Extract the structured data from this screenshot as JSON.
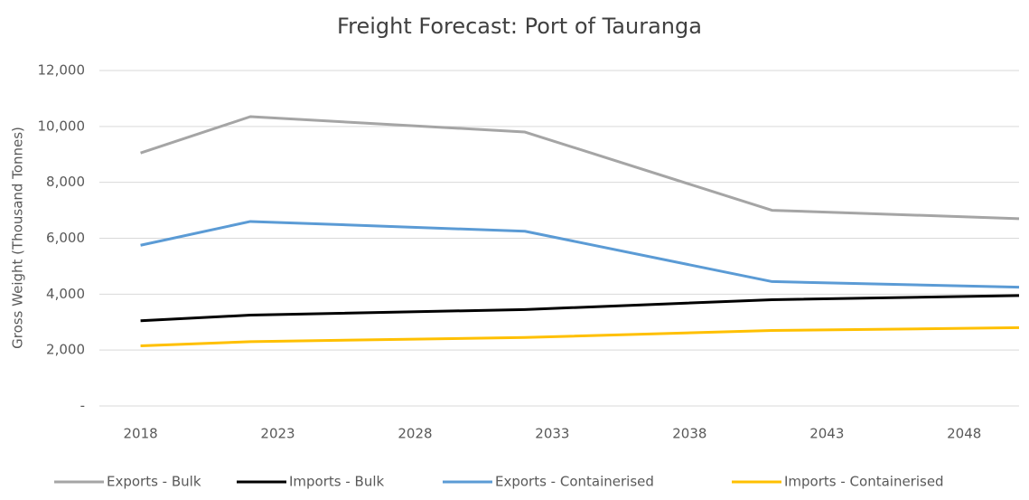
{
  "chart_data": {
    "type": "line",
    "title": "Freight Forecast: Port of Tauranga",
    "y_label": "Gross Weight (Thousand Tonnes)",
    "x": [
      2018,
      2022,
      2032,
      2041,
      2050
    ],
    "xlim": [
      2016.5,
      2050
    ],
    "xticks": [
      2018,
      2023,
      2028,
      2033,
      2038,
      2043,
      2048
    ],
    "ylim": [
      0,
      12000
    ],
    "yticks": [
      {
        "value": 0,
        "label": "-"
      },
      {
        "value": 2000,
        "label": "2,000"
      },
      {
        "value": 4000,
        "label": "4,000"
      },
      {
        "value": 6000,
        "label": "6,000"
      },
      {
        "value": 8000,
        "label": "8,000"
      },
      {
        "value": 10000,
        "label": "10,000"
      },
      {
        "value": 12000,
        "label": "12,000"
      }
    ],
    "grid": true,
    "legend": "bottom",
    "series": [
      {
        "name": "Exports - Bulk",
        "color": "#a5a5a5",
        "values": [
          9050,
          10350,
          9800,
          7000,
          6700
        ]
      },
      {
        "name": "Imports - Bulk",
        "color": "#000000",
        "values": [
          3050,
          3250,
          3450,
          3800,
          3950
        ]
      },
      {
        "name": "Exports - Containerised",
        "color": "#5b9bd5",
        "values": [
          5750,
          6600,
          6250,
          4450,
          4250
        ]
      },
      {
        "name": "Imports - Containerised",
        "color": "#ffc000",
        "values": [
          2150,
          2300,
          2450,
          2700,
          2800
        ]
      }
    ]
  }
}
